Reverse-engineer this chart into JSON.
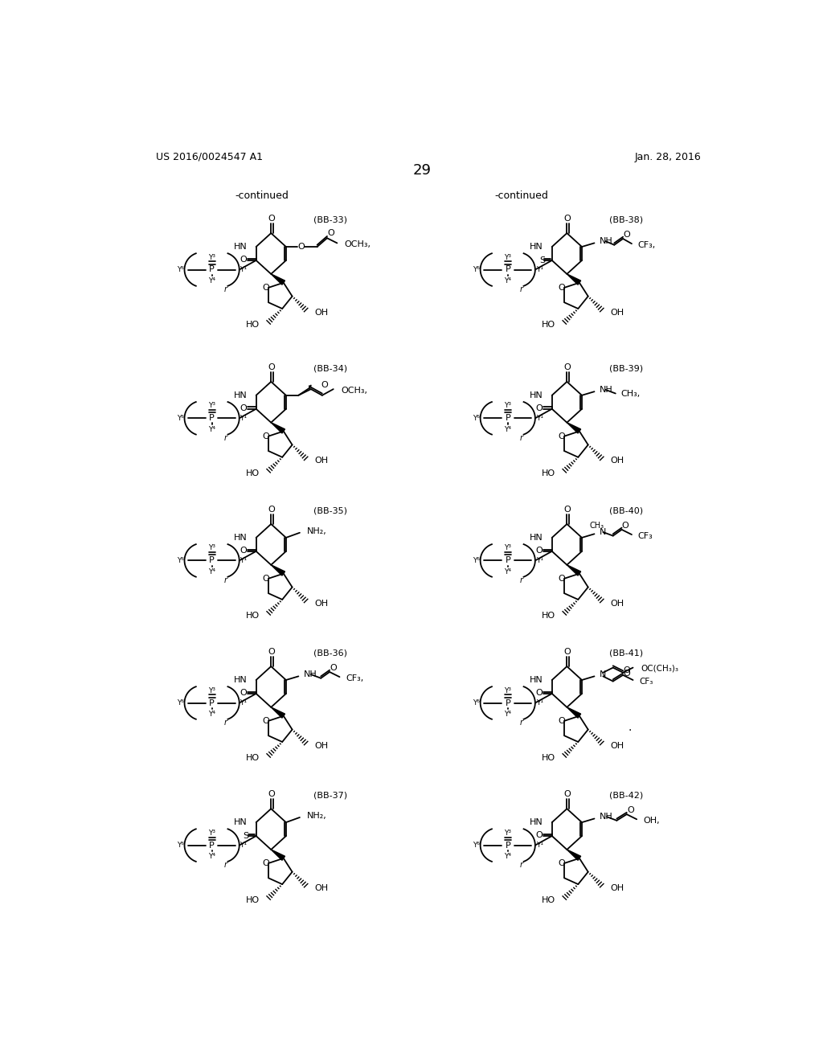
{
  "page_header_left": "US 2016/0024547 A1",
  "page_header_right": "Jan. 28, 2016",
  "page_number": "29",
  "continued_left": "-continued",
  "continued_right": "-continued",
  "background_color": "#ffffff",
  "text_color": "#000000"
}
